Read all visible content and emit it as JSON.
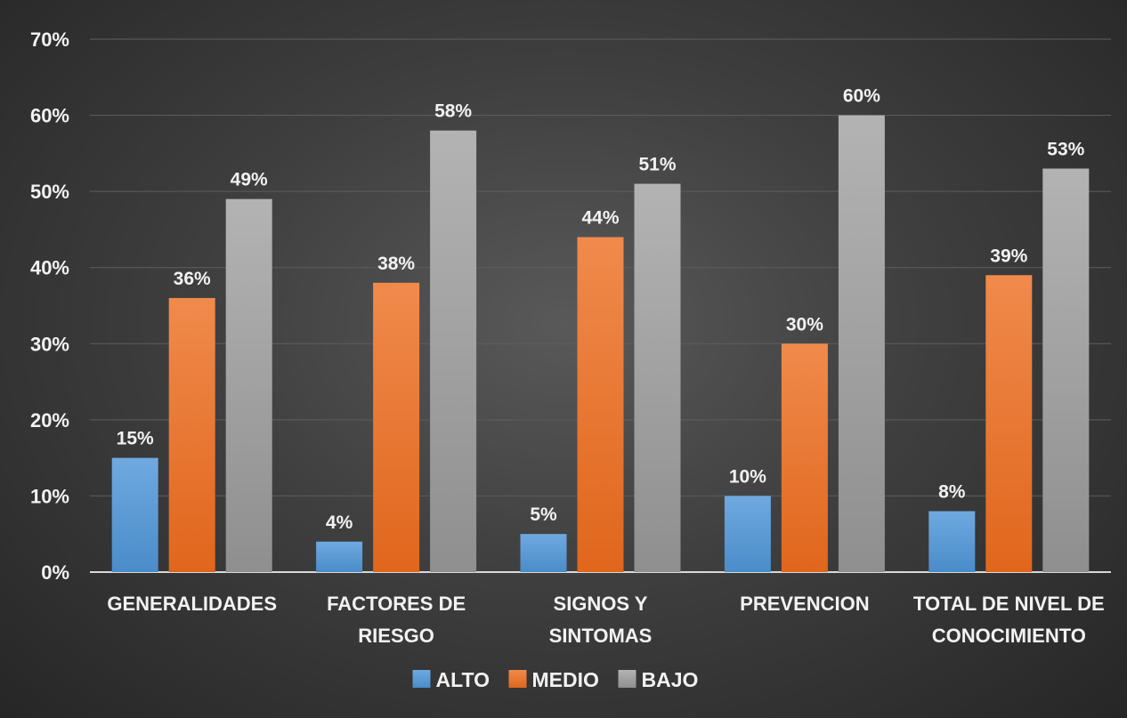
{
  "chart_data": {
    "type": "bar",
    "categories": [
      [
        "GENERALIDADES"
      ],
      [
        "FACTORES DE",
        "RIESGO"
      ],
      [
        "SIGNOS Y",
        "SINTOMAS"
      ],
      [
        "PREVENCION"
      ],
      [
        "TOTAL DE NIVEL DE",
        "CONOCIMIENTO"
      ]
    ],
    "series": [
      {
        "name": "ALTO",
        "color": "#5b9bd5",
        "values": [
          15,
          4,
          5,
          10,
          8
        ]
      },
      {
        "name": "MEDIO",
        "color": "#ed7d31",
        "values": [
          36,
          38,
          44,
          30,
          39
        ]
      },
      {
        "name": "BAJO",
        "color": "#a5a5a5",
        "values": [
          49,
          58,
          51,
          60,
          53
        ]
      }
    ],
    "ylim": [
      0,
      70
    ],
    "yticks": [
      "0%",
      "10%",
      "20%",
      "30%",
      "40%",
      "50%",
      "60%",
      "70%"
    ],
    "value_suffix": "%",
    "grid": true,
    "legend_position": "bottom"
  }
}
